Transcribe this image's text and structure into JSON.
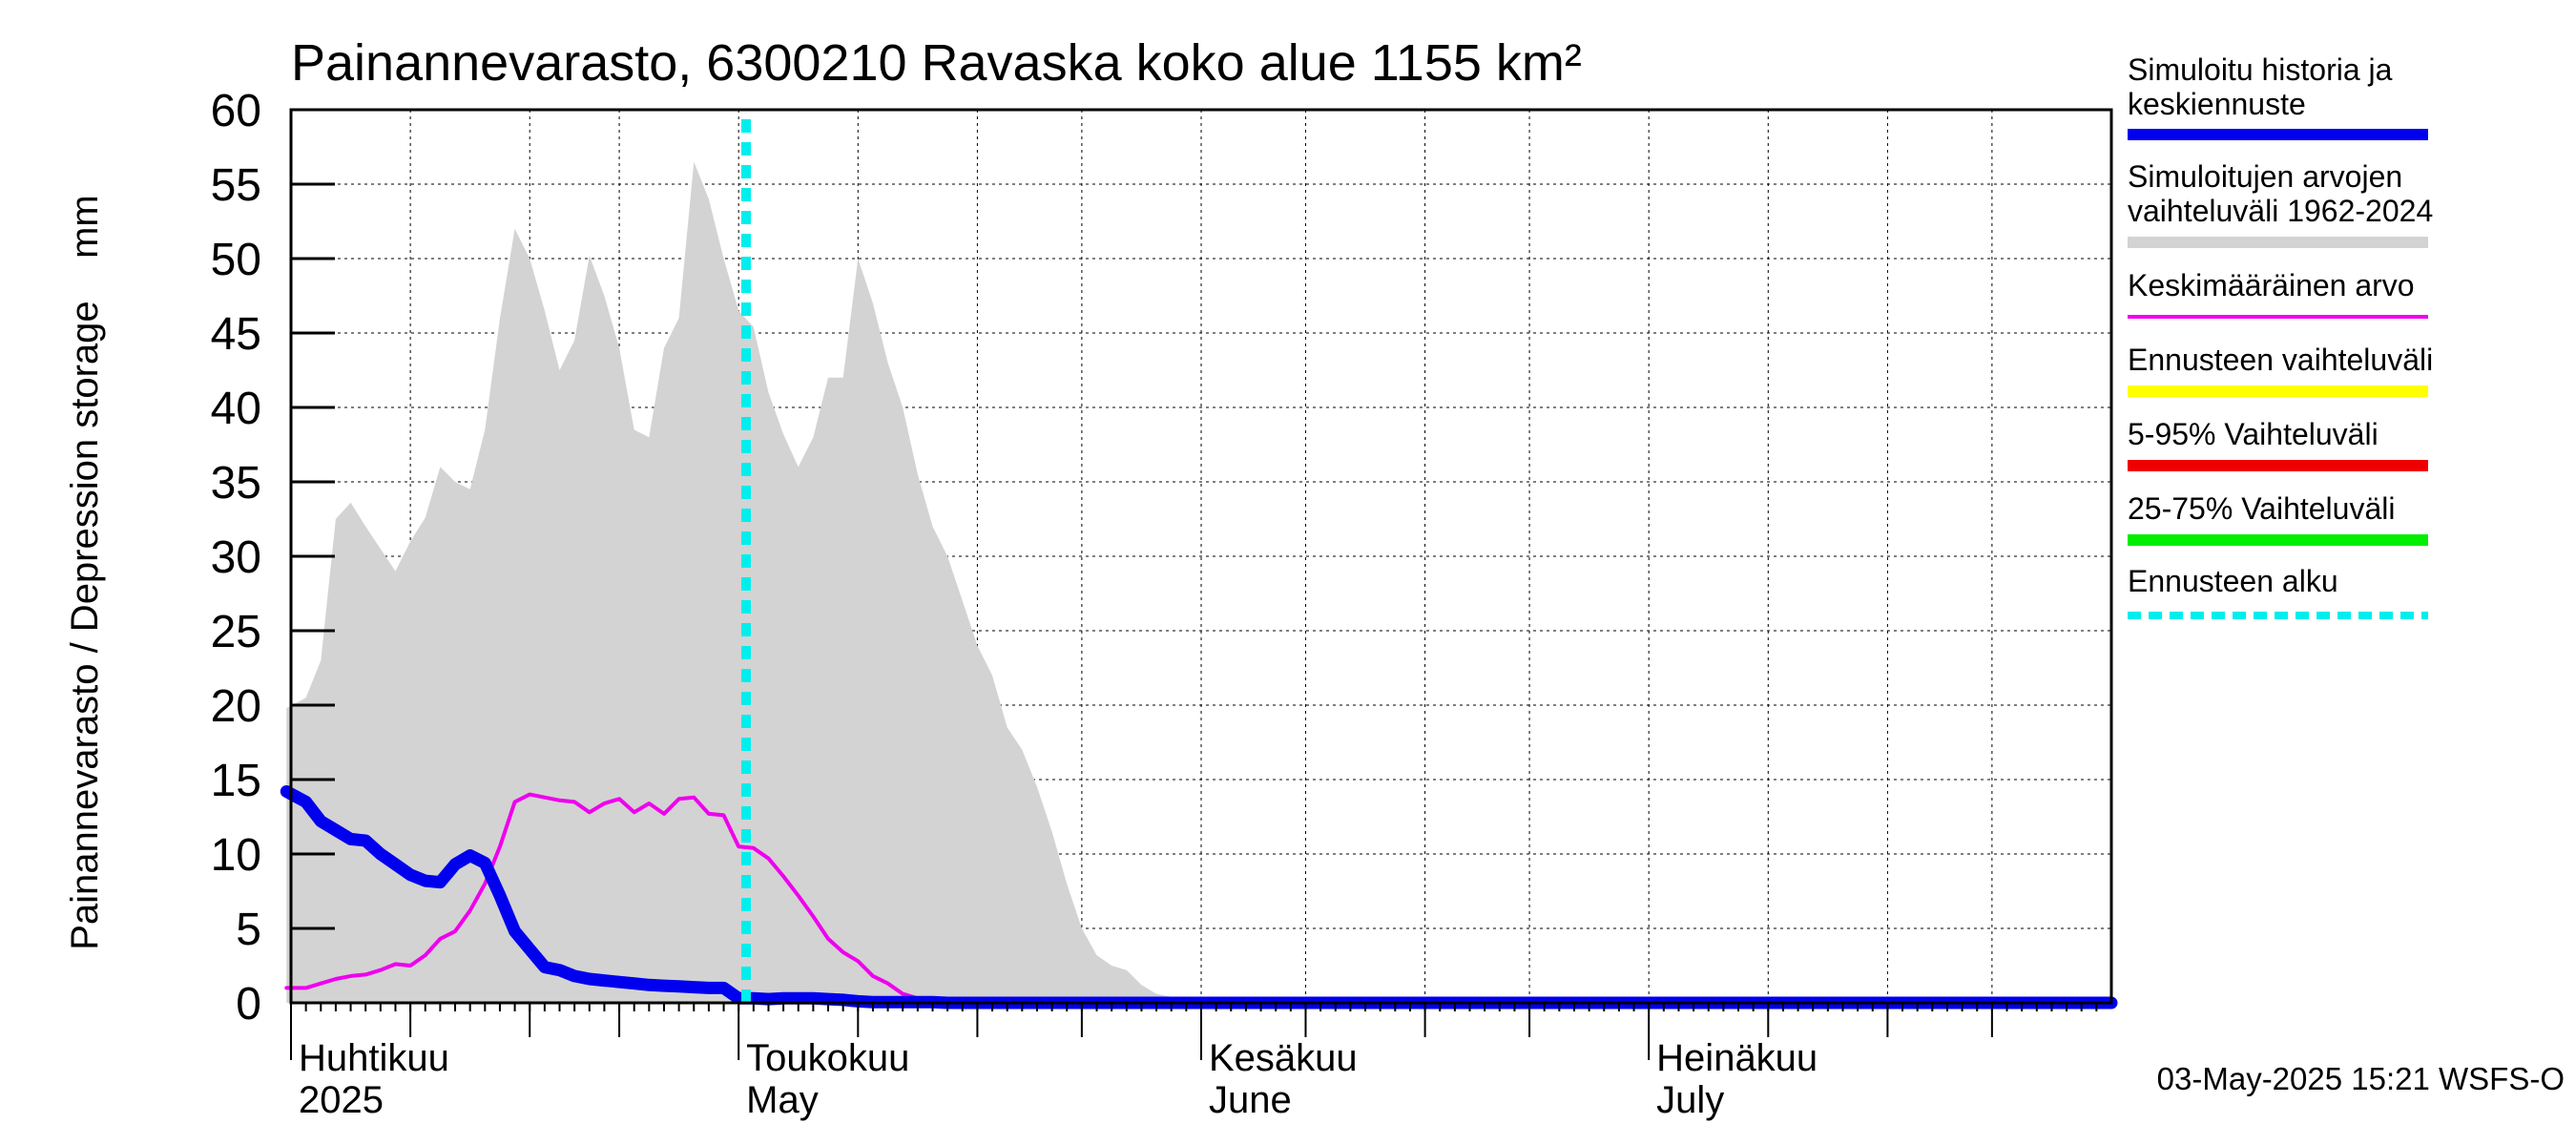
{
  "chart_data": {
    "type": "area",
    "title": "Painannevarasto, 6300210 Ravaska koko alue 1155 km²",
    "ylabel": "Painannevarasto / Depression storage    mm",
    "ylim": [
      0,
      60
    ],
    "yticks": [
      0,
      5,
      10,
      15,
      20,
      25,
      30,
      35,
      40,
      45,
      50,
      55,
      60
    ],
    "xlim_days": [
      0,
      122
    ],
    "x_unit": "days since 2025-04-01",
    "grid": true,
    "x_month_labels": [
      {
        "day": 0,
        "fi": "Huhtikuu",
        "en": "2025"
      },
      {
        "day": 30,
        "fi": "Toukokuu",
        "en": "May"
      },
      {
        "day": 61,
        "fi": "Kesäkuu",
        "en": "June"
      },
      {
        "day": 91,
        "fi": "Heinäkuu",
        "en": "July"
      }
    ],
    "legend_position": "right",
    "legend": [
      {
        "label": "Simuloitu historia ja keskiennuste",
        "color": "#0000ee",
        "style": "solid-thick"
      },
      {
        "label": "Simuloitujen arvojen vaihteluväli 1962-2024",
        "color": "#d3d3d3",
        "style": "solid-thick"
      },
      {
        "label": "Keskimääräinen arvo",
        "color": "#ee00ee",
        "style": "solid"
      },
      {
        "label": "Ennusteen vaihteluväli",
        "color": "#ffff00",
        "style": "solid-thick"
      },
      {
        "label": "5-95% Vaihteluväli",
        "color": "#ee0000",
        "style": "solid-thick"
      },
      {
        "label": "25-75% Vaihteluväli",
        "color": "#00ee00",
        "style": "solid-thick"
      },
      {
        "label": "Ennusteen alku",
        "color": "#00eeee",
        "style": "dashed"
      }
    ],
    "forecast_start_day": 30.5,
    "series": [
      {
        "name": "Simuloitujen arvojen vaihteluväli 1962-2024",
        "kind": "range",
        "color": "#d3d3d3",
        "x": [
          -0.3,
          1,
          2,
          3,
          4,
          5,
          6,
          7,
          8,
          9,
          10,
          11,
          12,
          13,
          14,
          15,
          16,
          17,
          18,
          19,
          20,
          21,
          22,
          23,
          24,
          25,
          26,
          27,
          28,
          29,
          30,
          31,
          32,
          33,
          34,
          35,
          36,
          37,
          38,
          39,
          40,
          41,
          42,
          43,
          44,
          45,
          46,
          47,
          48,
          49,
          50,
          51,
          52,
          53,
          54,
          55,
          56,
          57,
          58,
          59,
          60,
          60.6,
          122
        ],
        "upper": [
          19.8,
          20.5,
          23,
          32.5,
          33.6,
          32,
          30.5,
          29,
          31,
          32.6,
          36,
          35,
          34.5,
          38.5,
          46,
          52,
          50,
          46.5,
          42.5,
          44.5,
          50.2,
          47.5,
          44,
          38.5,
          38,
          44,
          46,
          56.5,
          54,
          50,
          46.5,
          45.4,
          41,
          38.2,
          36,
          38,
          42,
          42,
          50,
          47,
          43,
          40,
          35.5,
          32,
          30,
          27,
          24,
          22,
          18.5,
          17,
          14.5,
          11.5,
          8,
          5,
          3.2,
          2.5,
          2.2,
          1.2,
          0.6,
          0.4,
          0.3,
          0,
          0
        ],
        "lower": [
          0,
          0,
          0,
          0,
          0,
          0,
          0,
          0,
          0,
          0,
          0,
          0,
          0,
          0,
          0,
          0,
          0,
          0,
          0,
          0,
          0,
          0,
          0,
          0,
          0,
          0,
          0,
          0,
          0,
          0,
          0,
          0,
          0,
          0,
          0,
          0,
          0,
          0,
          0,
          0,
          0,
          0,
          0,
          0,
          0,
          0,
          0,
          0,
          0,
          0,
          0,
          0,
          0,
          0,
          0,
          0,
          0,
          0,
          0,
          0,
          0,
          0,
          0
        ]
      },
      {
        "name": "Keskimääräinen arvo",
        "color": "#ee00ee",
        "x": [
          -0.3,
          1,
          2,
          3,
          4,
          5,
          6,
          7,
          8,
          9,
          10,
          11,
          12,
          13,
          14,
          15,
          16,
          17,
          18,
          19,
          20,
          21,
          22,
          23,
          24,
          25,
          26,
          27,
          28,
          29,
          30,
          31,
          32,
          33,
          34,
          35,
          36,
          37,
          38,
          39,
          40,
          41,
          42,
          43,
          44,
          45,
          46,
          47,
          48,
          122
        ],
        "y": [
          1,
          1,
          1.3,
          1.6,
          1.8,
          1.9,
          2.2,
          2.6,
          2.5,
          3.2,
          4.3,
          4.8,
          6.2,
          8,
          10.5,
          13.5,
          14,
          13.8,
          13.6,
          13.5,
          12.8,
          13.4,
          13.7,
          12.8,
          13.4,
          12.7,
          13.7,
          13.8,
          12.7,
          12.6,
          10.5,
          10.4,
          9.7,
          8.5,
          7.2,
          5.8,
          4.3,
          3.4,
          2.8,
          1.8,
          1.3,
          0.6,
          0.3,
          0.1,
          0,
          0,
          0,
          0,
          0,
          0
        ]
      },
      {
        "name": "Simuloitu historia ja keskiennuste",
        "color": "#0000ee",
        "x": [
          -0.3,
          1,
          2,
          3,
          4,
          5,
          6,
          7,
          8,
          9,
          10,
          11,
          12,
          13,
          14,
          15,
          16,
          17,
          18,
          19,
          20,
          21,
          22,
          23,
          24,
          25,
          26,
          27,
          28,
          29,
          30,
          31,
          32,
          33,
          34,
          35,
          36,
          37,
          38,
          39,
          40,
          41,
          42,
          43,
          44,
          45,
          46,
          47,
          48,
          122
        ],
        "y": [
          14.2,
          13.5,
          12.2,
          11.6,
          11,
          10.9,
          10,
          9.3,
          8.6,
          8.2,
          8.1,
          9.3,
          9.9,
          9.4,
          7.2,
          4.8,
          3.6,
          2.4,
          2.2,
          1.8,
          1.6,
          1.5,
          1.4,
          1.3,
          1.2,
          1.15,
          1.1,
          1.05,
          1.0,
          1.0,
          0.3,
          0.3,
          0.25,
          0.3,
          0.3,
          0.3,
          0.25,
          0.2,
          0.1,
          0.05,
          0.05,
          0.05,
          0.05,
          0.05,
          0,
          0,
          0,
          0,
          0,
          0
        ]
      }
    ]
  },
  "timestamp": "03-May-2025 15:21 WSFS-O"
}
